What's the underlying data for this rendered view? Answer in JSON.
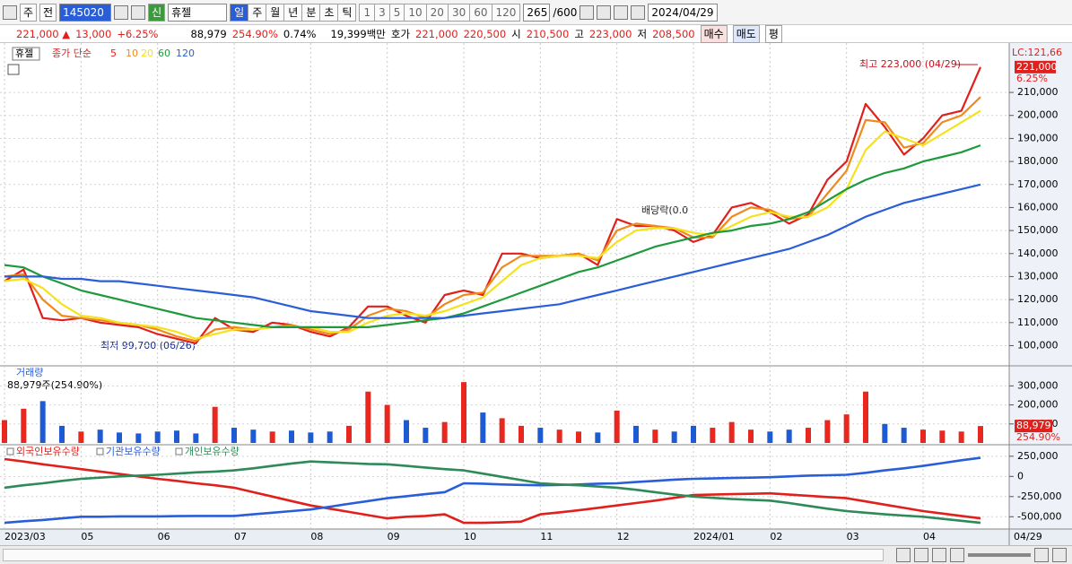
{
  "toolbar": {
    "market": "주",
    "prev": "전",
    "code": "145020",
    "badge": "신",
    "name": "휴젤",
    "periods": [
      "일",
      "주",
      "월",
      "년",
      "분",
      "초",
      "틱"
    ],
    "intervals": [
      "1",
      "3",
      "5",
      "10",
      "20",
      "30",
      "60",
      "120"
    ],
    "count": "265",
    "max": "/600",
    "date": "2024/04/29"
  },
  "quote": {
    "price": "221,000 ▲",
    "change": "13,000",
    "rate": "+6.25%",
    "volume": "88,979",
    "volume_rate": "254.90%",
    "turnover": "0.74%",
    "amount": "19,399백만",
    "ask_label": "호가",
    "ask": "221,000",
    "bid": "220,500",
    "open_label": "시",
    "open": "210,500",
    "high_label": "고",
    "high": "223,000",
    "low_label": "저",
    "low": "208,500",
    "buy": "매수",
    "sell": "매도",
    "eval": "평"
  },
  "chart_data": [
    {
      "type": "line",
      "title": "휴젤",
      "subtitle": "종가 단순",
      "categories": [
        "2023/03",
        null,
        null,
        null,
        "05",
        null,
        null,
        null,
        "06",
        null,
        null,
        null,
        "07",
        null,
        null,
        null,
        "08",
        null,
        null,
        null,
        "09",
        null,
        null,
        null,
        "10",
        null,
        null,
        null,
        "11",
        null,
        null,
        null,
        "12",
        null,
        null,
        null,
        "2024/01",
        null,
        null,
        null,
        "02",
        null,
        null,
        null,
        "03",
        null,
        null,
        null,
        "04",
        null,
        null,
        null
      ],
      "series": [
        {
          "name": "5",
          "color": "#e0201c",
          "values": [
            128000,
            133000,
            112000,
            111000,
            112000,
            110000,
            109000,
            108000,
            105000,
            103000,
            101000,
            112000,
            107000,
            106000,
            110000,
            109000,
            106000,
            104000,
            108000,
            117000,
            117000,
            113000,
            110000,
            122000,
            124000,
            122000,
            140000,
            140000,
            138000,
            139000,
            140000,
            135000,
            155000,
            152000,
            152000,
            150000,
            145000,
            148000,
            160000,
            162000,
            158000,
            153000,
            157000,
            172000,
            180000,
            205000,
            195000,
            183000,
            190000,
            200000,
            202000,
            221000
          ]
        },
        {
          "name": "10",
          "color": "#f08a1c",
          "values": [
            130000,
            131000,
            120000,
            113000,
            112000,
            111000,
            110000,
            109000,
            107000,
            104000,
            102000,
            107000,
            108000,
            107000,
            108000,
            109000,
            107000,
            105000,
            107000,
            113000,
            116000,
            115000,
            112000,
            118000,
            122000,
            123000,
            134000,
            139000,
            139000,
            139000,
            140000,
            137000,
            150000,
            153000,
            152000,
            151000,
            147000,
            147000,
            156000,
            160000,
            159000,
            155000,
            156000,
            166000,
            176000,
            198000,
            197000,
            186000,
            188000,
            197000,
            200000,
            208000
          ]
        },
        {
          "name": "20",
          "color": "#f4e21c",
          "values": [
            128000,
            129000,
            125000,
            118000,
            113000,
            112000,
            110000,
            109000,
            108000,
            106000,
            103000,
            105000,
            107000,
            107000,
            108000,
            108000,
            108000,
            106000,
            106000,
            110000,
            113000,
            114000,
            113000,
            115000,
            118000,
            121000,
            128000,
            135000,
            138000,
            139000,
            139000,
            138000,
            145000,
            150000,
            151000,
            151000,
            149000,
            148000,
            152000,
            156000,
            158000,
            156000,
            156000,
            160000,
            168000,
            185000,
            193000,
            190000,
            187000,
            192000,
            197000,
            202000
          ]
        },
        {
          "name": "60",
          "color": "#1e9a3c",
          "values": [
            135000,
            134000,
            130000,
            127000,
            124000,
            122000,
            120000,
            118000,
            116000,
            114000,
            112000,
            111000,
            110000,
            109000,
            108000,
            108000,
            108000,
            108000,
            108000,
            108000,
            109000,
            110000,
            111000,
            112000,
            114000,
            117000,
            120000,
            123000,
            126000,
            129000,
            132000,
            134000,
            137000,
            140000,
            143000,
            145000,
            147000,
            149000,
            150000,
            152000,
            153000,
            155000,
            158000,
            163000,
            168000,
            172000,
            175000,
            177000,
            180000,
            182000,
            184000,
            187000
          ]
        },
        {
          "name": "120",
          "color": "#2a5ed8",
          "values": [
            130000,
            130000,
            130000,
            129000,
            129000,
            128000,
            128000,
            127000,
            126000,
            125000,
            124000,
            123000,
            122000,
            121000,
            119000,
            117000,
            115000,
            114000,
            113000,
            112000,
            112000,
            112000,
            112000,
            112000,
            113000,
            114000,
            115000,
            116000,
            117000,
            118000,
            120000,
            122000,
            124000,
            126000,
            128000,
            130000,
            132000,
            134000,
            136000,
            138000,
            140000,
            142000,
            145000,
            148000,
            152000,
            156000,
            159000,
            162000,
            164000,
            166000,
            168000,
            170000
          ]
        }
      ],
      "ylim": [
        92000,
        226000
      ],
      "yticks": [
        {
          "value": 100000,
          "label": "100,000"
        },
        {
          "value": 110000,
          "label": "110,000"
        },
        {
          "value": 120000,
          "label": "120,000"
        },
        {
          "value": 130000,
          "label": "130,000"
        },
        {
          "value": 140000,
          "label": "140,000"
        },
        {
          "value": 150000,
          "label": "150,000"
        },
        {
          "value": 160000,
          "label": "160,000"
        },
        {
          "value": 170000,
          "label": "170,000"
        },
        {
          "value": 180000,
          "label": "180,000"
        },
        {
          "value": 190000,
          "label": "190,000"
        },
        {
          "value": 200000,
          "label": "200,000"
        },
        {
          "value": 210000,
          "label": "210,000"
        }
      ],
      "grid": true,
      "annotations": [
        "최고 223,000 (04/29)",
        "최저 99,700 (06/26)",
        "배당락(0.0"
      ],
      "right_labels": [
        "LC:121,66",
        "221,000",
        "6.25%"
      ],
      "last_date": "04/29"
    },
    {
      "type": "bar",
      "title": "거래량",
      "subtitle": "88,979주(254.90%)",
      "values": [
        120000,
        180000,
        220000,
        90000,
        60000,
        70000,
        55000,
        50000,
        60000,
        65000,
        50000,
        190000,
        80000,
        70000,
        60000,
        65000,
        55000,
        60000,
        90000,
        270000,
        200000,
        120000,
        80000,
        110000,
        320000,
        160000,
        130000,
        90000,
        80000,
        70000,
        60000,
        55000,
        170000,
        90000,
        70000,
        60000,
        90000,
        80000,
        110000,
        70000,
        60000,
        70000,
        80000,
        120000,
        150000,
        270000,
        100000,
        80000,
        70000,
        65000,
        60000,
        88979
      ],
      "bar_colors": [
        "#e8281e",
        "#e8281e",
        "#1e5ad2",
        "#1e5ad2",
        "#e8281e",
        "#1e5ad2",
        "#1e5ad2",
        "#1e5ad2",
        "#1e5ad2",
        "#1e5ad2",
        "#1e5ad2",
        "#e8281e",
        "#1e5ad2",
        "#1e5ad2",
        "#e8281e",
        "#1e5ad2",
        "#1e5ad2",
        "#1e5ad2",
        "#e8281e",
        "#e8281e",
        "#e8281e",
        "#1e5ad2",
        "#1e5ad2",
        "#e8281e",
        "#e8281e",
        "#1e5ad2",
        "#e8281e",
        "#e8281e",
        "#1e5ad2",
        "#e8281e",
        "#e8281e",
        "#1e5ad2",
        "#e8281e",
        "#1e5ad2",
        "#e8281e",
        "#1e5ad2",
        "#1e5ad2",
        "#e8281e",
        "#e8281e",
        "#e8281e",
        "#1e5ad2",
        "#1e5ad2",
        "#e8281e",
        "#e8281e",
        "#e8281e",
        "#e8281e",
        "#1e5ad2",
        "#1e5ad2",
        "#e8281e",
        "#e8281e",
        "#e8281e",
        "#e8281e"
      ],
      "ylim": [
        0,
        330000
      ],
      "yticks": [
        {
          "value": 100000,
          "label": "100,000"
        },
        {
          "value": 200000,
          "label": "200,000"
        },
        {
          "value": 300000,
          "label": "300,000"
        }
      ],
      "right_labels": [
        "88,979",
        "254.90%"
      ]
    },
    {
      "type": "line",
      "series": [
        {
          "name": "외국인보유수량",
          "color": "#e0201c",
          "values": [
            215000,
            185000,
            150000,
            120000,
            90000,
            60000,
            30000,
            0,
            -30000,
            -55000,
            -85000,
            -110000,
            -140000,
            -195000,
            -250000,
            -305000,
            -360000,
            -400000,
            -440000,
            -480000,
            -520000,
            -500000,
            -490000,
            -470000,
            -575000,
            -575000,
            -570000,
            -560000,
            -470000,
            -445000,
            -420000,
            -390000,
            -360000,
            -330000,
            -300000,
            -265000,
            -230000,
            -225000,
            -220000,
            -215000,
            -210000,
            -225000,
            -240000,
            -255000,
            -270000,
            -310000,
            -350000,
            -390000,
            -430000,
            -460000,
            -490000,
            -520000
          ]
        },
        {
          "name": "기관보유수량",
          "color": "#2a5ed8",
          "values": [
            -575000,
            -555000,
            -540000,
            -520000,
            -500000,
            -500000,
            -495000,
            -495000,
            -495000,
            -492000,
            -490000,
            -490000,
            -490000,
            -470000,
            -450000,
            -430000,
            -410000,
            -375000,
            -340000,
            -305000,
            -270000,
            -245000,
            -220000,
            -195000,
            -85000,
            -90000,
            -100000,
            -105000,
            -110000,
            -105000,
            -100000,
            -90000,
            -85000,
            -70000,
            -55000,
            -40000,
            -30000,
            -25000,
            -20000,
            -15000,
            -10000,
            0,
            10000,
            15000,
            20000,
            45000,
            75000,
            100000,
            130000,
            165000,
            200000,
            230000
          ]
        },
        {
          "name": "개인보유수량",
          "color": "#2e8a58",
          "values": [
            -140000,
            -110000,
            -85000,
            -55000,
            -30000,
            -15000,
            0,
            10000,
            20000,
            35000,
            50000,
            60000,
            75000,
            100000,
            130000,
            160000,
            185000,
            175000,
            165000,
            155000,
            150000,
            130000,
            110000,
            90000,
            75000,
            35000,
            -5000,
            -45000,
            -85000,
            -100000,
            -110000,
            -125000,
            -140000,
            -165000,
            -195000,
            -225000,
            -250000,
            -265000,
            -280000,
            -290000,
            -300000,
            -330000,
            -365000,
            -400000,
            -430000,
            -450000,
            -470000,
            -485000,
            -500000,
            -525000,
            -550000,
            -575000
          ]
        }
      ],
      "ylim": [
        -630000,
        348000
      ],
      "yticks": [
        {
          "value": -500000,
          "label": "-500,000"
        },
        {
          "value": -250000,
          "label": "-250,000"
        },
        0,
        {
          "value": 250000,
          "label": "250,000"
        }
      ]
    }
  ]
}
